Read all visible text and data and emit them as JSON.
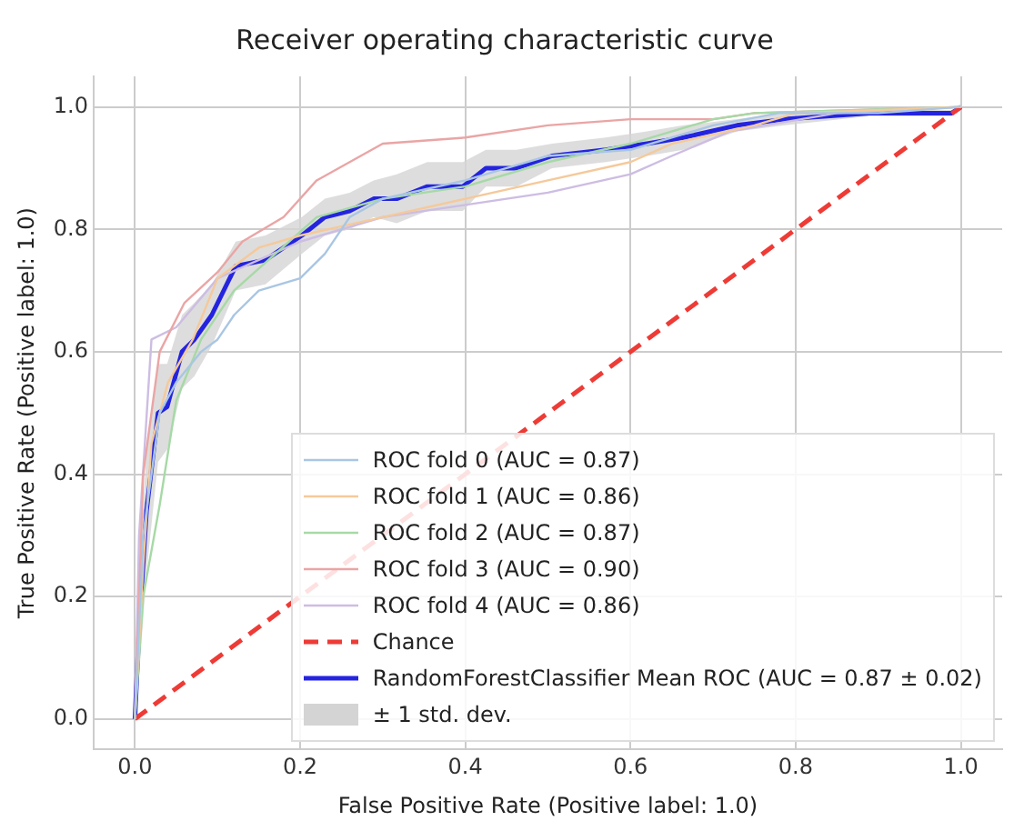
{
  "chart_data": {
    "type": "line",
    "title": "Receiver operating characteristic curve",
    "xlabel": "False Positive Rate (Positive label: 1.0)",
    "ylabel": "True Positive Rate (Positive label: 1.0)",
    "xlim": [
      -0.05,
      1.05
    ],
    "ylim": [
      -0.05,
      1.05
    ],
    "xticks": [
      {
        "value": 0,
        "label": "0.0"
      },
      0.2,
      0.4,
      0.6,
      0.8,
      {
        "value": 1,
        "label": "1.0"
      }
    ],
    "yticks": [
      {
        "value": 0,
        "label": "0.0"
      },
      0.2,
      0.4,
      0.6,
      0.8,
      {
        "value": 1,
        "label": "1.0"
      }
    ],
    "grid": true,
    "legend": "bottom right",
    "series": [
      {
        "name": "ROC fold 0 (AUC = 0.87)",
        "color": "#a9c6e3",
        "x": [
          0,
          0.01,
          0.03,
          0.05,
          0.08,
          0.1,
          0.12,
          0.15,
          0.2,
          0.23,
          0.26,
          0.3,
          0.4,
          0.45,
          0.5,
          0.6,
          0.7,
          0.78,
          0.9,
          1
        ],
        "values": [
          0,
          0.3,
          0.5,
          0.55,
          0.6,
          0.62,
          0.66,
          0.7,
          0.72,
          0.76,
          0.82,
          0.85,
          0.88,
          0.9,
          0.92,
          0.93,
          0.97,
          0.99,
          0.99,
          1
        ]
      },
      {
        "name": "ROC fold 1 (AUC = 0.86)",
        "color": "#f5c99a",
        "x": [
          0,
          0.01,
          0.02,
          0.04,
          0.07,
          0.1,
          0.15,
          0.2,
          0.3,
          0.4,
          0.5,
          0.6,
          0.65,
          0.75,
          0.8,
          1
        ],
        "values": [
          0,
          0.25,
          0.45,
          0.55,
          0.62,
          0.72,
          0.77,
          0.79,
          0.82,
          0.85,
          0.88,
          0.91,
          0.94,
          0.97,
          0.99,
          1
        ]
      },
      {
        "name": "ROC fold 2 (AUC = 0.87)",
        "color": "#a6d9a6",
        "x": [
          0,
          0.01,
          0.03,
          0.05,
          0.08,
          0.12,
          0.17,
          0.22,
          0.3,
          0.4,
          0.5,
          0.6,
          0.7,
          0.75,
          1
        ],
        "values": [
          0,
          0.2,
          0.35,
          0.52,
          0.62,
          0.7,
          0.76,
          0.82,
          0.85,
          0.87,
          0.91,
          0.94,
          0.98,
          0.99,
          1
        ]
      },
      {
        "name": "ROC fold 3 (AUC = 0.90)",
        "color": "#eaa5a5",
        "x": [
          0,
          0.01,
          0.03,
          0.06,
          0.1,
          0.13,
          0.18,
          0.22,
          0.3,
          0.4,
          0.5,
          0.6,
          0.7,
          0.75,
          1
        ],
        "values": [
          0,
          0.4,
          0.6,
          0.68,
          0.73,
          0.78,
          0.82,
          0.88,
          0.94,
          0.95,
          0.97,
          0.98,
          0.98,
          0.99,
          1
        ]
      },
      {
        "name": "ROC fold 4 (AUC = 0.86)",
        "color": "#cdbde3",
        "x": [
          0,
          0.005,
          0.02,
          0.05,
          0.1,
          0.15,
          0.2,
          0.3,
          0.4,
          0.5,
          0.6,
          0.65,
          0.72,
          0.85,
          1
        ],
        "values": [
          0,
          0.3,
          0.62,
          0.64,
          0.72,
          0.75,
          0.78,
          0.82,
          0.84,
          0.86,
          0.89,
          0.92,
          0.96,
          0.99,
          1
        ]
      },
      {
        "name": "Chance",
        "color": "#ee3b36",
        "line_style": "dashed",
        "x": [
          0,
          1
        ],
        "values": [
          0,
          1
        ]
      },
      {
        "name": "RandomForestClassifier Mean ROC (AUC = 0.87 ± 0.02)",
        "color": "#2424e0",
        "line_style": "solid",
        "x": [
          0,
          0.005,
          0.014,
          0.028,
          0.039,
          0.057,
          0.072,
          0.093,
          0.122,
          0.158,
          0.202,
          0.23,
          0.26,
          0.289,
          0.317,
          0.354,
          0.397,
          0.425,
          0.462,
          0.505,
          0.57,
          0.62,
          0.664,
          0.729,
          0.787,
          0.889,
          0.918,
          0.989,
          1
        ],
        "values": [
          0,
          0.15,
          0.34,
          0.5,
          0.51,
          0.6,
          0.62,
          0.66,
          0.74,
          0.75,
          0.79,
          0.82,
          0.83,
          0.85,
          0.85,
          0.87,
          0.87,
          0.9,
          0.9,
          0.92,
          0.93,
          0.94,
          0.95,
          0.97,
          0.98,
          0.99,
          0.99,
          0.99,
          1
        ],
        "lower": [
          0,
          0.07,
          0.24,
          0.42,
          0.44,
          0.54,
          0.56,
          0.61,
          0.7,
          0.71,
          0.76,
          0.79,
          0.8,
          0.82,
          0.81,
          0.83,
          0.83,
          0.87,
          0.87,
          0.9,
          0.91,
          0.92,
          0.93,
          0.96,
          0.97,
          0.985,
          0.985,
          0.985,
          1
        ],
        "upper": [
          0,
          0.23,
          0.44,
          0.58,
          0.58,
          0.66,
          0.68,
          0.71,
          0.78,
          0.79,
          0.82,
          0.85,
          0.86,
          0.88,
          0.89,
          0.91,
          0.91,
          0.93,
          0.93,
          0.94,
          0.95,
          0.96,
          0.97,
          0.98,
          0.99,
          0.995,
          0.995,
          0.995,
          1
        ]
      }
    ],
    "annotations": [
      "± 1 std. dev."
    ]
  }
}
